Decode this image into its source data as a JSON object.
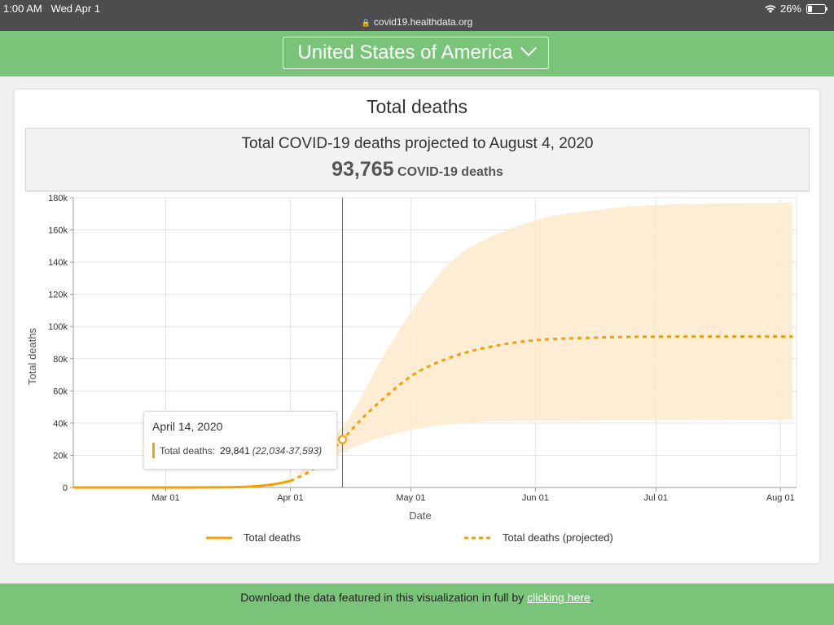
{
  "status_bar": {
    "time": "1:00 AM",
    "date": "Wed Apr 1",
    "url": "covid19.healthdata.org",
    "battery": "26%",
    "battery_level": 0.26
  },
  "header": {
    "location": "United States of America"
  },
  "card": {
    "title": "Total deaths",
    "summary_text": "Total COVID-19 deaths projected to August 4, 2020",
    "summary_value": "93,765",
    "summary_unit": "COVID-19 deaths"
  },
  "tooltip": {
    "date": "April 14, 2020",
    "label": "Total deaths:",
    "value": "29,841",
    "range": "(22,034-37,593)"
  },
  "footer": {
    "text": "Download the data featured in this visualization in full by",
    "link": "clicking here",
    "suffix": "."
  },
  "colors": {
    "brand_green": "#79c479",
    "series_orange": "#f5a100",
    "band_fill": "#fdebd0"
  },
  "chart_data": {
    "type": "line",
    "xlabel": "Date",
    "ylabel": "Total deaths",
    "x_ticks": [
      "Mar 01",
      "Apr 01",
      "May 01",
      "Jun 01",
      "Jul 01",
      "Aug 01"
    ],
    "y_ticks": [
      "0",
      "20k",
      "40k",
      "60k",
      "80k",
      "100k",
      "120k",
      "140k",
      "160k",
      "180k"
    ],
    "xlim": [
      "2020-02-07",
      "2020-08-05"
    ],
    "ylim": [
      0,
      180000
    ],
    "grid": true,
    "legend_position": "bottom",
    "marker": {
      "date": "2020-04-14",
      "value": 29841
    },
    "series": [
      {
        "name": "Total deaths",
        "style": "solid",
        "points": [
          [
            "2020-02-07",
            0
          ],
          [
            "2020-02-20",
            0
          ],
          [
            "2020-03-05",
            0
          ],
          [
            "2020-03-15",
            100
          ],
          [
            "2020-03-20",
            300
          ],
          [
            "2020-03-24",
            900
          ],
          [
            "2020-03-28",
            2000
          ],
          [
            "2020-04-01",
            4000
          ]
        ]
      },
      {
        "name": "Total deaths (projected)",
        "style": "dashed",
        "points": [
          [
            "2020-04-01",
            4000
          ],
          [
            "2020-04-07",
            12000
          ],
          [
            "2020-04-14",
            29841
          ],
          [
            "2020-04-21",
            48000
          ],
          [
            "2020-05-01",
            69000
          ],
          [
            "2020-05-10",
            80000
          ],
          [
            "2020-05-20",
            87000
          ],
          [
            "2020-06-01",
            91500
          ],
          [
            "2020-06-15",
            93000
          ],
          [
            "2020-07-01",
            93700
          ],
          [
            "2020-08-04",
            93765
          ]
        ]
      }
    ],
    "uncertainty_band": {
      "upper": [
        [
          "2020-04-01",
          4000
        ],
        [
          "2020-04-14",
          37593
        ],
        [
          "2020-04-25",
          85000
        ],
        [
          "2020-05-05",
          123000
        ],
        [
          "2020-05-15",
          148000
        ],
        [
          "2020-06-01",
          166000
        ],
        [
          "2020-06-15",
          172000
        ],
        [
          "2020-07-01",
          175500
        ],
        [
          "2020-08-04",
          177000
        ]
      ],
      "lower": [
        [
          "2020-04-01",
          4000
        ],
        [
          "2020-04-14",
          22034
        ],
        [
          "2020-04-25",
          32000
        ],
        [
          "2020-05-05",
          37500
        ],
        [
          "2020-05-15",
          40000
        ],
        [
          "2020-06-01",
          41500
        ],
        [
          "2020-08-04",
          42000
        ]
      ]
    }
  }
}
